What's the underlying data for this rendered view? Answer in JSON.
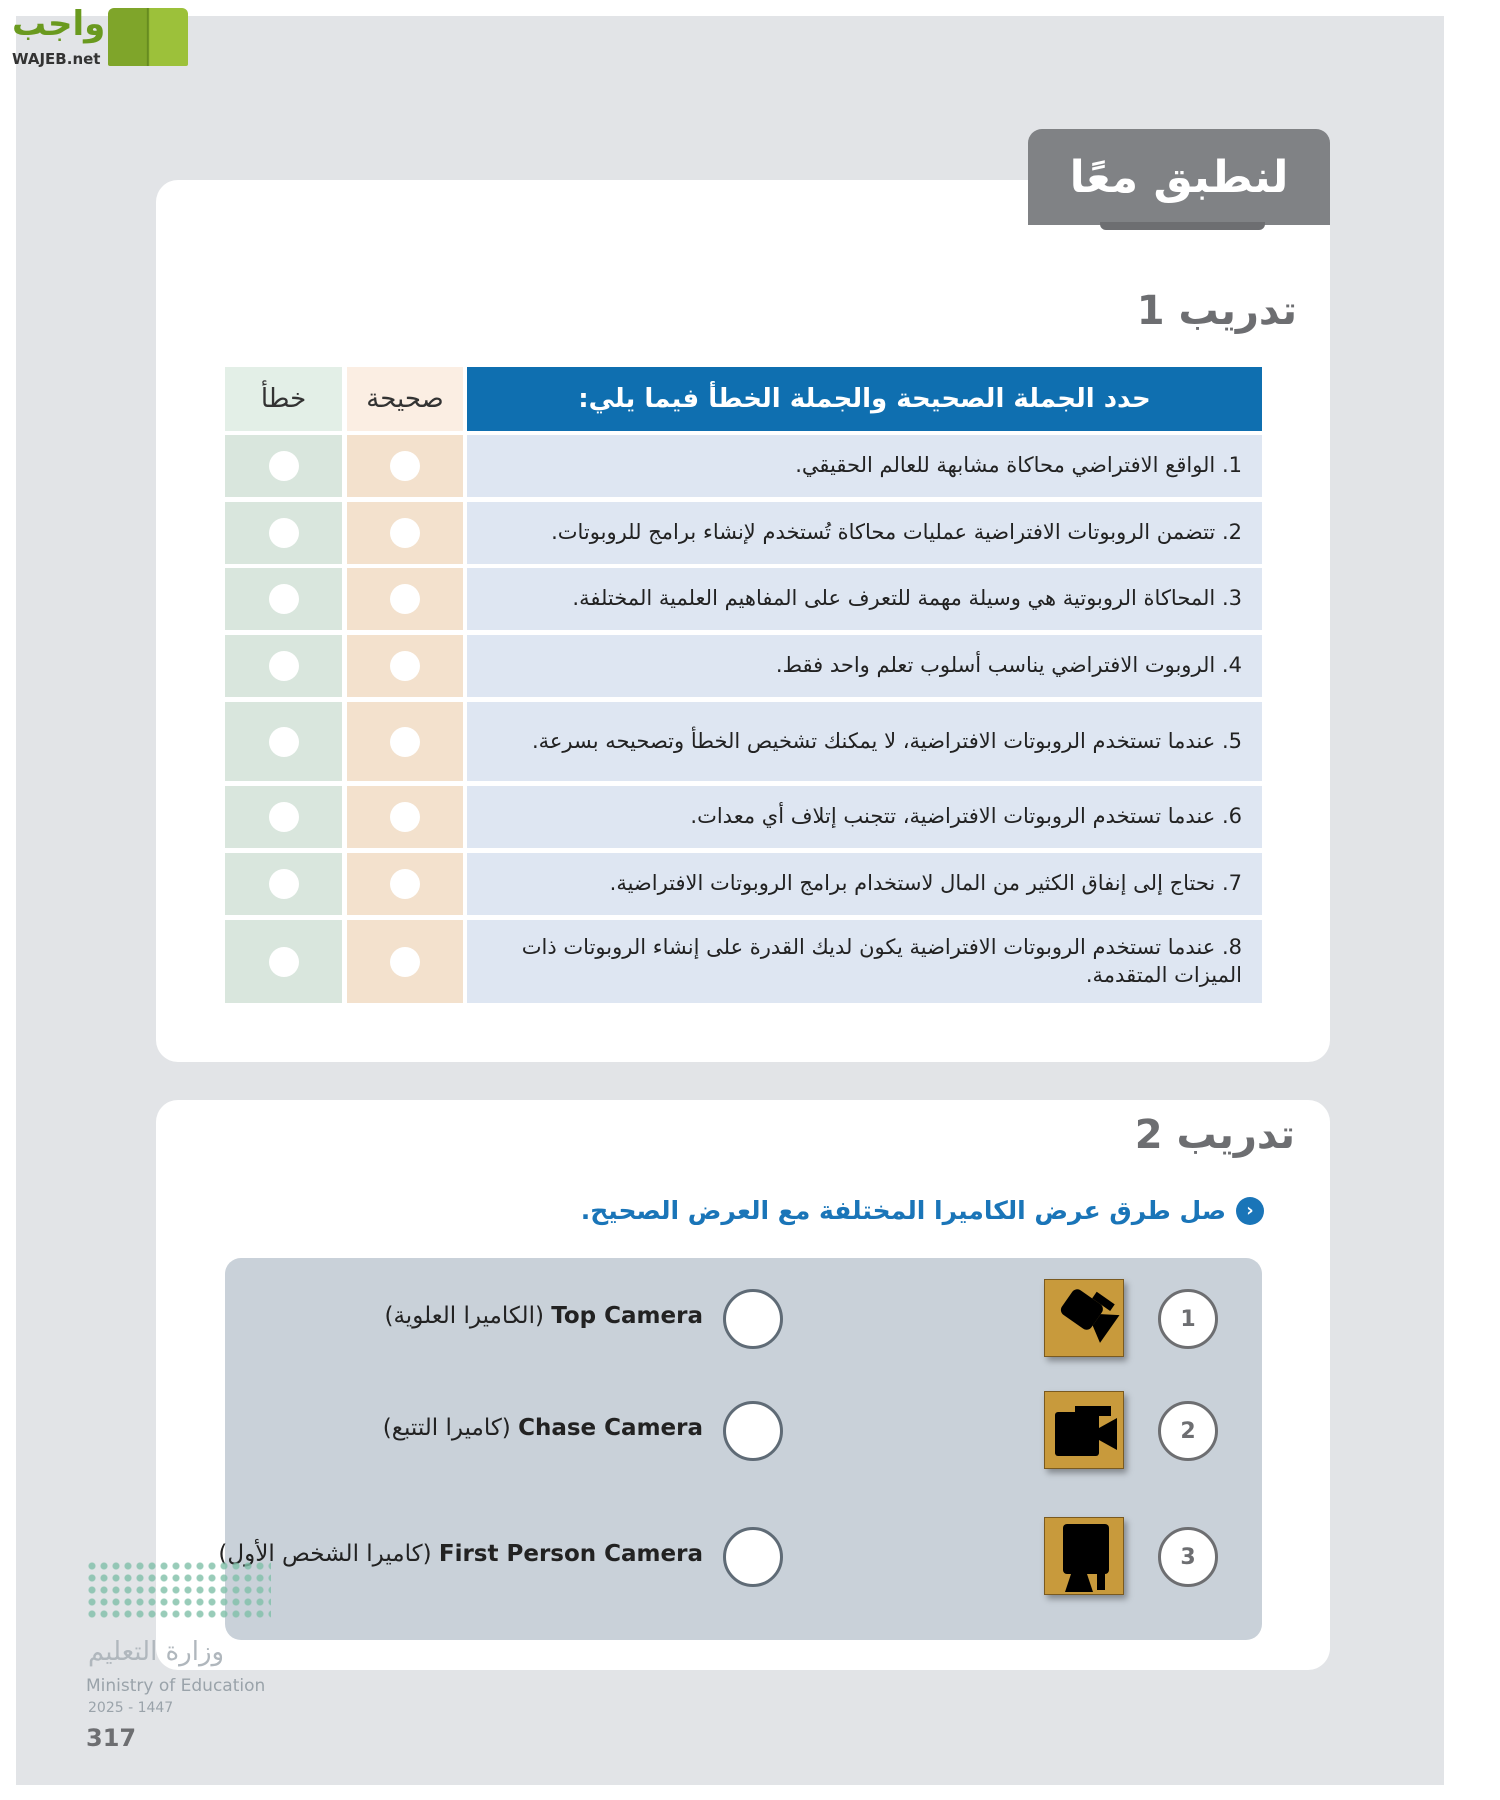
{
  "brand": {
    "logo_text": "واجب",
    "logo_sub": "WAJEB.net"
  },
  "section_title": "لنطبق معًا",
  "exercise1": {
    "title": "تدريب 1",
    "header": "حدد الجملة الصحيحة والجملة الخطأ فيما يلي:",
    "col_true": "صحيحة",
    "col_false": "خطأ",
    "rows": [
      "1. الواقع الافتراضي محاكاة مشابهة للعالم الحقيقي.",
      "2. تتضمن الروبوتات الافتراضية عمليات محاكاة تُستخدم لإنشاء برامج للروبوتات.",
      "3. المحاكاة الروبوتية هي وسيلة مهمة للتعرف على المفاهيم العلمية المختلفة.",
      "4. الروبوت الافتراضي يناسب أسلوب تعلم واحد فقط.",
      "5. عندما تستخدم الروبوتات الافتراضية، لا يمكنك تشخيص الخطأ وتصحيحه بسرعة.",
      "6. عندما تستخدم الروبوتات الافتراضية، تتجنب إتلاف أي معدات.",
      "7. نحتاج إلى إنفاق الكثير من المال لاستخدام برامج الروبوتات الافتراضية.",
      "8. عندما تستخدم الروبوتات الافتراضية يكون لديك القدرة على إنشاء الروبوتات ذات الميزات المتقدمة."
    ]
  },
  "exercise2": {
    "title": "تدريب 2",
    "instruction": "صل طرق عرض الكاميرا المختلفة مع العرض الصحيح.",
    "icons": [
      {
        "number": "1",
        "icon": "top-camera-icon"
      },
      {
        "number": "2",
        "icon": "chase-camera-icon"
      },
      {
        "number": "3",
        "icon": "first-person-camera-icon"
      }
    ],
    "options": [
      {
        "en": "Top Camera",
        "ar": "(الكاميرا العلوية)"
      },
      {
        "en": "Chase Camera",
        "ar": "(كاميرا التتبع)"
      },
      {
        "en": "First Person Camera",
        "ar": "(كاميرا الشخص الأول)"
      }
    ]
  },
  "footer": {
    "ministry_ar": "وزارة التعليم",
    "ministry_en": "Ministry of Education",
    "year": "2025 - 1447",
    "page_number": "317"
  },
  "colors": {
    "header_blue": "#0f6fb0",
    "accent_blue": "#1a75b8",
    "icon_gold": "#c89a3c"
  }
}
